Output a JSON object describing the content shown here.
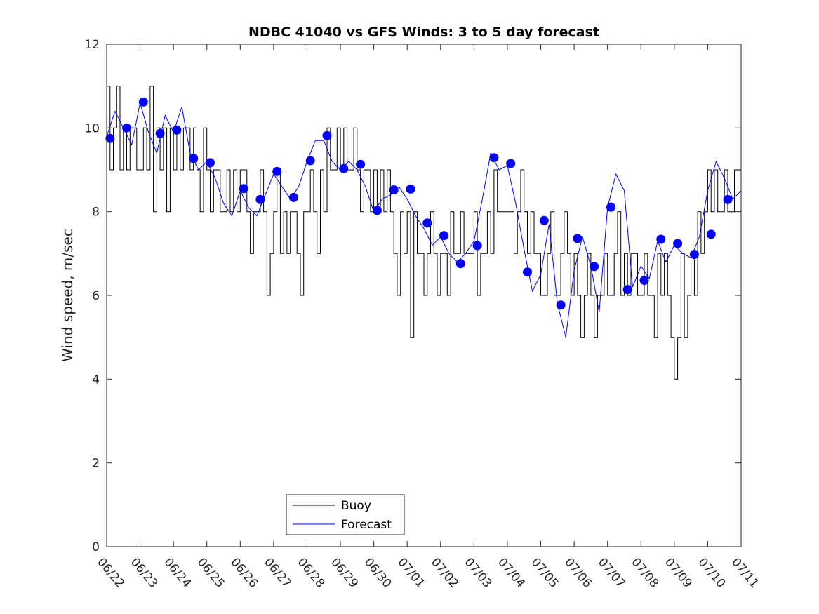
{
  "chart_data": {
    "type": "line",
    "title": "NDBC 41040 vs GFS Winds: 3 to 5 day forecast",
    "xlabel": "",
    "ylabel": "Wind speed, m/sec",
    "x_tick_labels": [
      "06/22",
      "06/23",
      "06/24",
      "06/25",
      "06/26",
      "06/27",
      "06/28",
      "06/29",
      "06/30",
      "07/01",
      "07/02",
      "07/03",
      "07/04",
      "07/05",
      "07/06",
      "07/07",
      "07/08",
      "07/09",
      "07/10",
      "07/11"
    ],
    "xlim": [
      0,
      19
    ],
    "ylim": [
      0,
      12
    ],
    "y_ticks": [
      0,
      2,
      4,
      6,
      8,
      10,
      12
    ],
    "grid": false,
    "legend_position": "bottom-left",
    "colors": {
      "buoy": "#000000",
      "forecast": "#0000ff"
    },
    "series": [
      {
        "name": "Buoy",
        "style": "step",
        "x_units": "days since 06/22",
        "x": [
          0.0,
          0.1,
          0.2,
          0.3,
          0.4,
          0.5,
          0.6,
          0.7,
          0.8,
          0.9,
          1.0,
          1.1,
          1.2,
          1.3,
          1.4,
          1.5,
          1.6,
          1.7,
          1.8,
          1.9,
          2.0,
          2.1,
          2.2,
          2.3,
          2.4,
          2.5,
          2.6,
          2.7,
          2.8,
          2.9,
          3.0,
          3.1,
          3.2,
          3.3,
          3.4,
          3.5,
          3.6,
          3.7,
          3.8,
          3.9,
          4.0,
          4.1,
          4.2,
          4.3,
          4.4,
          4.5,
          4.6,
          4.7,
          4.8,
          4.9,
          5.0,
          5.1,
          5.2,
          5.3,
          5.4,
          5.5,
          5.6,
          5.7,
          5.8,
          5.9,
          6.0,
          6.1,
          6.2,
          6.3,
          6.4,
          6.5,
          6.6,
          6.7,
          6.8,
          6.9,
          7.0,
          7.1,
          7.2,
          7.3,
          7.4,
          7.5,
          7.6,
          7.7,
          7.8,
          7.9,
          8.0,
          8.1,
          8.2,
          8.3,
          8.4,
          8.5,
          8.6,
          8.7,
          8.8,
          8.9,
          9.0,
          9.1,
          9.2,
          9.3,
          9.4,
          9.5,
          9.6,
          9.7,
          9.8,
          9.9,
          10.0,
          10.1,
          10.2,
          10.3,
          10.4,
          10.5,
          10.6,
          10.7,
          10.8,
          10.9,
          11.0,
          11.1,
          11.2,
          11.3,
          11.4,
          11.5,
          11.6,
          11.7,
          11.8,
          11.9,
          12.0,
          12.1,
          12.2,
          12.3,
          12.4,
          12.5,
          12.6,
          12.7,
          12.8,
          12.9,
          13.0,
          13.1,
          13.2,
          13.3,
          13.4,
          13.5,
          13.6,
          13.7,
          13.8,
          13.9,
          14.0,
          14.1,
          14.2,
          14.3,
          14.4,
          14.5,
          14.6,
          14.7,
          14.8,
          14.9,
          15.0,
          15.1,
          15.2,
          15.3,
          15.4,
          15.5,
          15.6,
          15.7,
          15.8,
          15.9,
          16.0,
          16.1,
          16.2,
          16.3,
          16.4,
          16.5,
          16.6,
          16.7,
          16.8,
          16.9,
          17.0,
          17.1,
          17.2,
          17.3,
          17.4,
          17.5,
          17.6,
          17.7,
          17.8,
          17.9,
          18.0,
          18.1,
          18.2,
          18.3,
          18.4,
          18.5,
          18.6,
          18.7,
          18.8,
          18.9
        ],
        "values": [
          11,
          9,
          10,
          11,
          9,
          10,
          9,
          10,
          10,
          9,
          9,
          10,
          9,
          11,
          8,
          10,
          9,
          10,
          8,
          10,
          9,
          10,
          9,
          10,
          10,
          9,
          10,
          9,
          8,
          10,
          9,
          8,
          9,
          9,
          8,
          8,
          9,
          8,
          9,
          8,
          9,
          9,
          8,
          7,
          8,
          8,
          9,
          8,
          6,
          7,
          8,
          9,
          7,
          8,
          7,
          8,
          8,
          7,
          6,
          8,
          8,
          9,
          8,
          7,
          9,
          8,
          10,
          9,
          9,
          10,
          9,
          10,
          9,
          9,
          10,
          9,
          8,
          9,
          9,
          8,
          9,
          8,
          9,
          8,
          9,
          8,
          7,
          6,
          8,
          7,
          8,
          5,
          8,
          7,
          7,
          6,
          7,
          8,
          7,
          6,
          7,
          7,
          6,
          8,
          7,
          7,
          8,
          7,
          7,
          7,
          8,
          6,
          7,
          7,
          8,
          7,
          9,
          8,
          8,
          8,
          8,
          8,
          7,
          8,
          9,
          8,
          7,
          8,
          7,
          7,
          6,
          6,
          7,
          8,
          6,
          6,
          7,
          8,
          7,
          6,
          7,
          6,
          5,
          6,
          7,
          6,
          5,
          6,
          6,
          7,
          6,
          6,
          7,
          8,
          6,
          7,
          6,
          7,
          7,
          6,
          6,
          7,
          6,
          6,
          5,
          7,
          6,
          7,
          6,
          5,
          4,
          5,
          7,
          5,
          6,
          7,
          6,
          8,
          7,
          8,
          9,
          8,
          9,
          8,
          8,
          9,
          8,
          8,
          9,
          9
        ]
      },
      {
        "name": "Forecast",
        "style": "line",
        "x_units": "days since 06/22",
        "x": [
          0.0,
          0.25,
          0.5,
          0.75,
          1.0,
          1.25,
          1.5,
          1.75,
          2.0,
          2.25,
          2.5,
          2.75,
          3.0,
          3.25,
          3.5,
          3.75,
          4.0,
          4.25,
          4.5,
          4.75,
          5.0,
          5.25,
          5.5,
          5.75,
          6.0,
          6.25,
          6.5,
          6.75,
          7.0,
          7.25,
          7.5,
          7.75,
          8.0,
          8.25,
          8.5,
          8.75,
          9.0,
          9.25,
          9.5,
          9.75,
          10.0,
          10.25,
          10.5,
          10.75,
          11.0,
          11.25,
          11.5,
          11.75,
          12.0,
          12.25,
          12.5,
          12.75,
          13.0,
          13.25,
          13.5,
          13.75,
          14.0,
          14.25,
          14.5,
          14.75,
          15.0,
          15.25,
          15.5,
          15.75,
          16.0,
          16.25,
          16.5,
          16.75,
          17.0,
          17.25,
          17.5,
          17.75,
          18.0,
          18.25,
          18.5,
          18.75,
          19.0
        ],
        "values": [
          9.8,
          10.4,
          10.0,
          9.6,
          10.6,
          9.9,
          9.4,
          10.3,
          9.9,
          10.5,
          9.4,
          9.0,
          9.2,
          8.8,
          8.2,
          7.9,
          8.5,
          8.1,
          7.9,
          8.4,
          8.9,
          8.6,
          8.3,
          8.6,
          9.2,
          9.7,
          9.7,
          9.2,
          9.0,
          9.2,
          9.0,
          8.6,
          8.0,
          8.3,
          8.4,
          8.6,
          8.3,
          7.9,
          7.6,
          7.2,
          7.4,
          7.0,
          6.8,
          7.0,
          7.3,
          8.3,
          9.4,
          9.0,
          9.1,
          8.2,
          7.1,
          6.1,
          6.5,
          7.7,
          5.8,
          5.0,
          6.6,
          7.4,
          6.7,
          5.6,
          8.1,
          8.9,
          8.5,
          6.2,
          6.7,
          6.4,
          7.3,
          6.8,
          7.2,
          7.0,
          6.9,
          7.4,
          8.5,
          9.2,
          8.8,
          8.3,
          8.5
        ],
        "marker_x": [
          0.1,
          0.6,
          1.1,
          1.6,
          2.1,
          2.6,
          3.1,
          4.1,
          4.6,
          5.1,
          5.6,
          6.1,
          6.6,
          7.1,
          7.6,
          8.1,
          8.6,
          9.1,
          9.6,
          10.1,
          10.6,
          11.1,
          11.6,
          12.1,
          12.6,
          13.1,
          13.6,
          14.1,
          14.6,
          15.1,
          15.6,
          16.1,
          16.6,
          17.1,
          17.6,
          18.1,
          18.6
        ],
        "marker_values": [
          9.75,
          10.0,
          10.62,
          9.87,
          9.95,
          9.27,
          9.17,
          8.55,
          8.29,
          8.96,
          8.34,
          9.22,
          9.82,
          9.03,
          9.13,
          8.03,
          8.52,
          8.54,
          7.73,
          7.43,
          6.76,
          7.19,
          9.29,
          9.15,
          6.56,
          7.79,
          5.77,
          7.36,
          6.69,
          8.11,
          6.14,
          6.36,
          7.34,
          7.24,
          6.98,
          7.46,
          8.29
        ]
      }
    ]
  },
  "legend": {
    "entries": [
      {
        "label": "Buoy",
        "color": "#000000"
      },
      {
        "label": "Forecast",
        "color": "#0000ff"
      }
    ]
  }
}
